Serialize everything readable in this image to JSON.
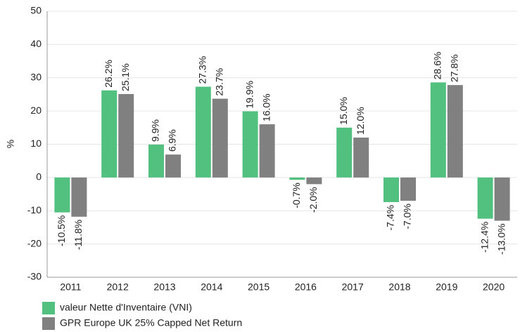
{
  "chart_data": {
    "type": "bar",
    "ylabel": "%",
    "categories": [
      "2011",
      "2012",
      "2013",
      "2014",
      "2015",
      "2016",
      "2017",
      "2018",
      "2019",
      "2020"
    ],
    "series": [
      {
        "name": "valeur Nette d'Inventaire (VNI)",
        "color": "#52c17f",
        "values": [
          -10.5,
          26.2,
          9.9,
          27.3,
          19.9,
          -0.7,
          15.0,
          -7.4,
          28.6,
          -12.4
        ],
        "value_labels": [
          "-10.5%",
          "26.2%",
          "9.9%",
          "27.3%",
          "19.9%",
          "-0.7%",
          "15.0%",
          "-7.4%",
          "28.6%",
          "-12.4%"
        ]
      },
      {
        "name": "GPR Europe UK 25% Capped Net Return",
        "color": "#808080",
        "values": [
          -11.8,
          25.1,
          6.9,
          23.7,
          16.0,
          -2.0,
          12.0,
          -7.0,
          27.8,
          -13.0
        ],
        "value_labels": [
          "-11.8%",
          "25.1%",
          "6.9%",
          "23.7%",
          "16.0%",
          "-2.0%",
          "12.0%",
          "-7.0%",
          "27.8%",
          "-13.0%"
        ]
      }
    ],
    "ylim": [
      -30,
      50
    ],
    "yticks": [
      -30,
      -20,
      -10,
      0,
      10,
      20,
      30,
      40,
      50
    ],
    "grid": true
  }
}
